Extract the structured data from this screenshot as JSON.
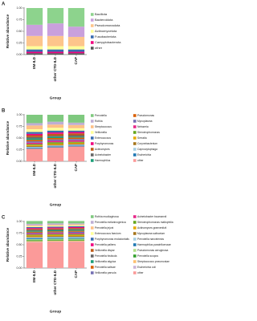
{
  "chart_data": [
    {
      "type": "bar",
      "stacked": true,
      "panel_label": "A",
      "x_label": "Group",
      "y_label": "Relative abundance",
      "categories": [
        "IIM-ILD",
        "other CTD-ILD",
        "CAP"
      ],
      "ylim": [
        0,
        1
      ],
      "yticks": [
        {
          "value": 0,
          "label": "0.00"
        },
        {
          "value": 0.25,
          "label": "0.25"
        },
        {
          "value": 0.5,
          "label": "0.50"
        },
        {
          "value": 0.75,
          "label": "0.75"
        },
        {
          "value": 1,
          "label": "1.00"
        }
      ],
      "legend": "right",
      "series": [
        {
          "name": "Bacillota",
          "color": "#8dd38d",
          "values": [
            0.36,
            0.33,
            0.4
          ]
        },
        {
          "name": "Bacteroidota",
          "color": "#c9a0dc",
          "values": [
            0.24,
            0.27,
            0.22
          ]
        },
        {
          "name": "Pseudomonadota",
          "color": "#fdc58b",
          "values": [
            0.22,
            0.22,
            0.2
          ]
        },
        {
          "name": "Actinomycetota",
          "color": "#ffff99",
          "values": [
            0.07,
            0.07,
            0.07
          ]
        },
        {
          "name": "Fusobacteriota",
          "color": "#386cb0",
          "values": [
            0.05,
            0.05,
            0.05
          ]
        },
        {
          "name": "Campylobacterota",
          "color": "#f0027f",
          "values": [
            0.03,
            0.03,
            0.03
          ]
        },
        {
          "name": "other",
          "color": "#555555",
          "values": [
            0.03,
            0.03,
            0.03
          ]
        }
      ]
    },
    {
      "type": "bar",
      "stacked": true,
      "panel_label": "B",
      "x_label": "Group",
      "y_label": "Relative abundance",
      "categories": [
        "IIM-ILD",
        "other CTD-ILD",
        "CAP"
      ],
      "ylim": [
        0,
        1
      ],
      "yticks": [
        {
          "value": 0,
          "label": "0.00"
        },
        {
          "value": 0.25,
          "label": "0.25"
        },
        {
          "value": 0.5,
          "label": "0.50"
        },
        {
          "value": 0.75,
          "label": "0.75"
        },
        {
          "value": 1,
          "label": "1.00"
        }
      ],
      "legend": "right",
      "series": [
        {
          "name": "Prevotella",
          "color": "#7fc97f",
          "values": [
            0.18,
            0.15,
            0.17
          ]
        },
        {
          "name": "Rothia",
          "color": "#beaed4",
          "values": [
            0.05,
            0.06,
            0.05
          ]
        },
        {
          "name": "Streptococcus",
          "color": "#fdc086",
          "values": [
            0.08,
            0.07,
            0.07
          ]
        },
        {
          "name": "Veillonella",
          "color": "#ffff99",
          "values": [
            0.06,
            0.06,
            0.05
          ]
        },
        {
          "name": "Enterococcus",
          "color": "#386cb0",
          "values": [
            0.04,
            0.04,
            0.03
          ]
        },
        {
          "name": "Porphyromonas",
          "color": "#f0027f",
          "values": [
            0.03,
            0.03,
            0.03
          ]
        },
        {
          "name": "Actinomyces",
          "color": "#bf5b17",
          "values": [
            0.04,
            0.04,
            0.04
          ]
        },
        {
          "name": "Acinetobacter",
          "color": "#666666",
          "values": [
            0.03,
            0.02,
            0.03
          ]
        },
        {
          "name": "Haemophilus",
          "color": "#1b9e77",
          "values": [
            0.03,
            0.03,
            0.02
          ]
        },
        {
          "name": "Pseudomonas",
          "color": "#d95f02",
          "values": [
            0.03,
            0.03,
            0.03
          ]
        },
        {
          "name": "Mycoplasma",
          "color": "#7570b3",
          "values": [
            0.03,
            0.03,
            0.03
          ]
        },
        {
          "name": "Neisseria",
          "color": "#e7298a",
          "values": [
            0.03,
            0.03,
            0.03
          ]
        },
        {
          "name": "Stenotrophomonas",
          "color": "#66a61e",
          "values": [
            0.02,
            0.03,
            0.02
          ]
        },
        {
          "name": "Serratia",
          "color": "#e6ab02",
          "values": [
            0.02,
            0.02,
            0.02
          ]
        },
        {
          "name": "Corynebacterium",
          "color": "#a6761d",
          "values": [
            0.02,
            0.02,
            0.02
          ]
        },
        {
          "name": "Capnocytophaga",
          "color": "#a6cee3",
          "values": [
            0.02,
            0.02,
            0.02
          ]
        },
        {
          "name": "Escherichia",
          "color": "#1f78b4",
          "values": [
            0.02,
            0.02,
            0.02
          ]
        },
        {
          "name": "other",
          "color": "#fb9a99",
          "values": [
            0.27,
            0.3,
            0.32
          ]
        }
      ]
    },
    {
      "type": "bar",
      "stacked": true,
      "panel_label": "C",
      "x_label": "Group",
      "y_label": "Relative abundance",
      "categories": [
        "IIM-ILD",
        "other CTD-ILD",
        "CAP"
      ],
      "ylim": [
        0,
        1
      ],
      "yticks": [
        {
          "value": 0,
          "label": "0.00"
        },
        {
          "value": 0.25,
          "label": "0.25"
        },
        {
          "value": 0.5,
          "label": "0.50"
        },
        {
          "value": 0.75,
          "label": "0.75"
        },
        {
          "value": 1,
          "label": "1.00"
        }
      ],
      "legend": "right",
      "series": [
        {
          "name": "Rothia mucilaginosa",
          "color": "#7fc97f",
          "values": [
            0.06,
            0.05,
            0.05
          ]
        },
        {
          "name": "Prevotella melaninogenica",
          "color": "#beaed4",
          "values": [
            0.03,
            0.03,
            0.02
          ]
        },
        {
          "name": "Prevotella jejuni",
          "color": "#fdc086",
          "values": [
            0.02,
            0.02,
            0.02
          ]
        },
        {
          "name": "Enterococcus faecium",
          "color": "#ffff99",
          "values": [
            0.02,
            0.02,
            0.02
          ]
        },
        {
          "name": "Porphyromonas endodontalis",
          "color": "#386cb0",
          "values": [
            0.02,
            0.02,
            0.02
          ]
        },
        {
          "name": "Prevotella pallens",
          "color": "#f0027f",
          "values": [
            0.02,
            0.02,
            0.02
          ]
        },
        {
          "name": "Veillonella dispar",
          "color": "#bf5b17",
          "values": [
            0.02,
            0.02,
            0.02
          ]
        },
        {
          "name": "Prevotella histicola",
          "color": "#666666",
          "values": [
            0.02,
            0.02,
            0.02
          ]
        },
        {
          "name": "Veillonella atypica",
          "color": "#1b9e77",
          "values": [
            0.02,
            0.02,
            0.02
          ]
        },
        {
          "name": "Prevotella salivae",
          "color": "#d95f02",
          "values": [
            0.02,
            0.02,
            0.02
          ]
        },
        {
          "name": "Veillonella parvula",
          "color": "#7570b3",
          "values": [
            0.02,
            0.02,
            0.03
          ]
        },
        {
          "name": "Acinetobacter baumannii",
          "color": "#e7298a",
          "values": [
            0.02,
            0.02,
            0.02
          ]
        },
        {
          "name": "Stenotrophomonas maltophilia",
          "color": "#66a61e",
          "values": [
            0.02,
            0.02,
            0.02
          ]
        },
        {
          "name": "Actinomyces graevenitzii",
          "color": "#e6ab02",
          "values": [
            0.02,
            0.02,
            0.02
          ]
        },
        {
          "name": "Mycoplasma salivarium",
          "color": "#a6761d",
          "values": [
            0.02,
            0.02,
            0.02
          ]
        },
        {
          "name": "Prevotella nanceiensis",
          "color": "#a6cee3",
          "values": [
            0.02,
            0.02,
            0.02
          ]
        },
        {
          "name": "Haemophilus parainfluenzae",
          "color": "#1f78b4",
          "values": [
            0.02,
            0.02,
            0.02
          ]
        },
        {
          "name": "Pseudomonas aeruginosa",
          "color": "#b2df8a",
          "values": [
            0.02,
            0.02,
            0.02
          ]
        },
        {
          "name": "Prevotella scopos",
          "color": "#33a02c",
          "values": [
            0.02,
            0.02,
            0.02
          ]
        },
        {
          "name": "Streptococcus pneumoniae",
          "color": "#fdbf6f",
          "values": [
            0.02,
            0.02,
            0.02
          ]
        },
        {
          "name": "Escherichia coli",
          "color": "#cab2d6",
          "values": [
            0.01,
            0.01,
            0.01
          ]
        },
        {
          "name": "other",
          "color": "#fb9a99",
          "values": [
            0.55,
            0.56,
            0.56
          ]
        }
      ]
    }
  ]
}
